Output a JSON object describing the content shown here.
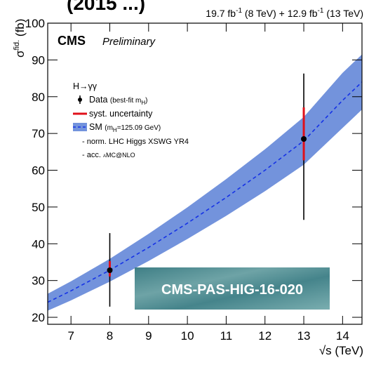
{
  "chart_data": {
    "type": "errorbar",
    "title": "(2015 ...)",
    "lumi": [
      "19.7 fb",
      "-1",
      " (8 TeV) + 12.9 fb",
      "-1",
      " (13 TeV)"
    ],
    "cms_label": "CMS",
    "cms_sub": "Preliminary",
    "x_label": "√s (TeV)",
    "y_label": [
      "σ",
      "fid.",
      " (fb)"
    ],
    "xlim": [
      6.4,
      14.5
    ],
    "xticks": [
      7,
      8,
      9,
      10,
      11,
      12,
      13,
      14
    ],
    "ylim": [
      18.1,
      100
    ],
    "yticks": [
      20,
      30,
      40,
      50,
      60,
      70,
      80,
      90,
      100
    ],
    "x": [
      8,
      13
    ],
    "values": [
      32.8,
      68.5
    ],
    "stat_low": [
      9.9,
      22.0
    ],
    "stat_high": [
      10.1,
      17.8
    ],
    "syst_low": [
      1.7,
      5.8
    ],
    "syst_high": [
      2.5,
      8.6
    ],
    "data_color": "#000000",
    "syst_color": "#e0101a",
    "sm": {
      "x": [
        6.4,
        7,
        8,
        9,
        10,
        11,
        12,
        13,
        14,
        14.5
      ],
      "central": [
        24.1,
        27.2,
        32.8,
        39.0,
        45.6,
        52.6,
        60.0,
        68.0,
        79.0,
        84.0
      ],
      "low": [
        21.8,
        24.6,
        29.7,
        35.3,
        41.3,
        47.6,
        54.3,
        61.5,
        71.5,
        76.5
      ],
      "high": [
        26.4,
        29.8,
        35.9,
        42.7,
        49.9,
        57.6,
        65.7,
        74.5,
        86.5,
        91.5
      ],
      "band_color": "#7393dc",
      "line_color": "#1532e6"
    },
    "legend": {
      "header": "H→γγ",
      "data": [
        "Data ",
        "(best-fit m",
        "H",
        ")"
      ],
      "syst": "syst. uncertainty",
      "sm": [
        "SM ",
        "(m",
        "H",
        "=125.09 GeV)"
      ],
      "note1": "-  norm. LHC Higgs XSWG YR4",
      "note2": [
        "-  acc. ",
        "aMC@NLO"
      ]
    },
    "annotation": "CMS-PAS-HIG-16-020"
  }
}
